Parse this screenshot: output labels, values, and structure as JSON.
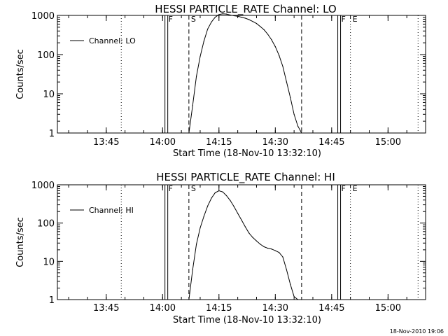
{
  "chart_data": [
    {
      "type": "line",
      "title": "HESSI PARTICLE_RATE Channel: LO",
      "xlabel": "Start Time (18-Nov-10 13:32:10)",
      "ylabel": "Counts/sec",
      "yscale": "log",
      "ylim": [
        1,
        1000
      ],
      "xlim": [
        "13:32",
        "15:10"
      ],
      "xticks": [
        "13:45",
        "14:00",
        "14:15",
        "14:30",
        "14:45",
        "15:00"
      ],
      "yticks": [
        "1",
        "10",
        "100",
        "1000"
      ],
      "legend": {
        "position": "top-left"
      },
      "series": [
        {
          "name": "Channel: LO",
          "x": [
            "14:07.0",
            "14:08.0",
            "14:09.0",
            "14:10.0",
            "14:11.0",
            "14:12.0",
            "14:13.0",
            "14:14.0",
            "14:15.0",
            "14:16.0",
            "14:17.0",
            "14:18.0",
            "14:19.0",
            "14:20.0",
            "14:21.0",
            "14:22.0",
            "14:23.0",
            "14:24.0",
            "14:25.0",
            "14:26.0",
            "14:27.0",
            "14:28.0",
            "14:29.0",
            "14:30.0",
            "14:31.0",
            "14:32.0",
            "14:33.0",
            "14:34.0",
            "14:35.0",
            "14:36.0",
            "14:37.0"
          ],
          "y": [
            1,
            5,
            28,
            90,
            220,
            450,
            680,
            900,
            1050,
            1100,
            1080,
            1020,
            980,
            950,
            900,
            850,
            780,
            700,
            620,
            520,
            430,
            330,
            240,
            160,
            95,
            50,
            20,
            8,
            3,
            1.5,
            1
          ]
        }
      ],
      "markers": [
        {
          "label": "F",
          "time": "14:01.0",
          "style": "solid-double"
        },
        {
          "label": "S",
          "time": "14:07.0",
          "style": "dashed"
        },
        {
          "label": "",
          "time": "14:37.0",
          "style": "dashed"
        },
        {
          "label": "F",
          "time": "14:47.0",
          "style": "solid-double"
        },
        {
          "label": "E",
          "time": "14:50.0",
          "style": "dotted"
        },
        {
          "label": "",
          "time": "13:49.0",
          "style": "dotted"
        },
        {
          "label": "",
          "time": "15:08.0",
          "style": "dotted"
        }
      ]
    },
    {
      "type": "line",
      "title": "HESSI PARTICLE_RATE Channel: HI",
      "xlabel": "Start Time (18-Nov-10 13:32:10)",
      "ylabel": "Counts/sec",
      "yscale": "log",
      "ylim": [
        1,
        1000
      ],
      "xlim": [
        "13:32",
        "15:10"
      ],
      "xticks": [
        "13:45",
        "14:00",
        "14:15",
        "14:30",
        "14:45",
        "15:00"
      ],
      "yticks": [
        "1",
        "10",
        "100",
        "1000"
      ],
      "legend": {
        "position": "top-left"
      },
      "series": [
        {
          "name": "Channel: HI",
          "x": [
            "14:07.0",
            "14:08.0",
            "14:09.0",
            "14:10.0",
            "14:11.0",
            "14:12.0",
            "14:13.0",
            "14:14.0",
            "14:15.0",
            "14:16.0",
            "14:17.0",
            "14:18.0",
            "14:19.0",
            "14:20.0",
            "14:21.0",
            "14:22.0",
            "14:23.0",
            "14:24.0",
            "14:25.0",
            "14:26.0",
            "14:27.0",
            "14:28.0",
            "14:29.0",
            "14:30.0",
            "14:31.0",
            "14:32.0",
            "14:33.0",
            "14:34.0",
            "14:35.0",
            "14:36.0",
            "14:37.0"
          ],
          "y": [
            1,
            6,
            28,
            75,
            150,
            280,
            450,
            620,
            700,
            650,
            520,
            390,
            270,
            180,
            120,
            80,
            55,
            42,
            34,
            28,
            24,
            22,
            21,
            19,
            17,
            13,
            6,
            2.5,
            1.2,
            1,
            1
          ]
        }
      ],
      "markers": [
        {
          "label": "F",
          "time": "14:01.0",
          "style": "solid-double"
        },
        {
          "label": "S",
          "time": "14:07.0",
          "style": "dashed"
        },
        {
          "label": "",
          "time": "14:37.0",
          "style": "dashed"
        },
        {
          "label": "F",
          "time": "14:47.0",
          "style": "solid-double"
        },
        {
          "label": "E",
          "time": "14:50.0",
          "style": "dotted"
        },
        {
          "label": "",
          "time": "13:49.0",
          "style": "dotted"
        },
        {
          "label": "",
          "time": "15:08.0",
          "style": "dotted"
        }
      ]
    }
  ],
  "footer": {
    "timestamp": "18-Nov-2010 19:06"
  }
}
